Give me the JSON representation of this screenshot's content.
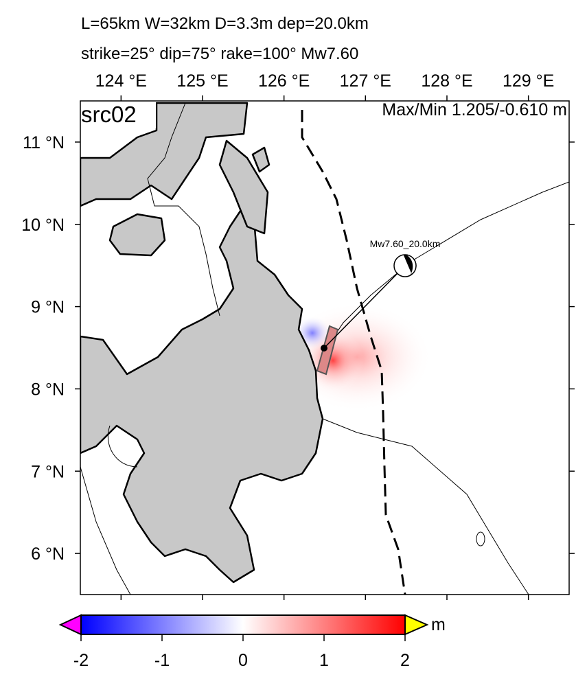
{
  "header": {
    "line1": "L=65km W=32km D=3.3m dep=20.0km",
    "line2": "strike=25° dip=75° rake=100° Mw7.60"
  },
  "map": {
    "panel_label": "src02",
    "max_min": "Max/Min 1.205/-0.610 m",
    "beachball_label": "Mw7.60_20.0km",
    "xlim": [
      123.5,
      129.5
    ],
    "ylim": [
      5.5,
      11.5
    ],
    "xticks": [
      {
        "value": 124,
        "label": "124 °E"
      },
      {
        "value": 125,
        "label": "125 °E"
      },
      {
        "value": 126,
        "label": "126 °E"
      },
      {
        "value": 127,
        "label": "127 °E"
      },
      {
        "value": 128,
        "label": "128 °E"
      },
      {
        "value": 129,
        "label": "129 °E"
      }
    ],
    "yticks": [
      {
        "value": 11,
        "label": "11 °N"
      },
      {
        "value": 10,
        "label": "10 °N"
      },
      {
        "value": 9,
        "label": "9 °N"
      },
      {
        "value": 8,
        "label": "8 °N"
      },
      {
        "value": 7,
        "label": "7 °N"
      },
      {
        "value": 6,
        "label": "6 °N"
      }
    ]
  },
  "colorbar": {
    "range": [
      -2,
      2
    ],
    "ticks": [
      -2,
      -1,
      0,
      1,
      2
    ],
    "unit": "m"
  }
}
